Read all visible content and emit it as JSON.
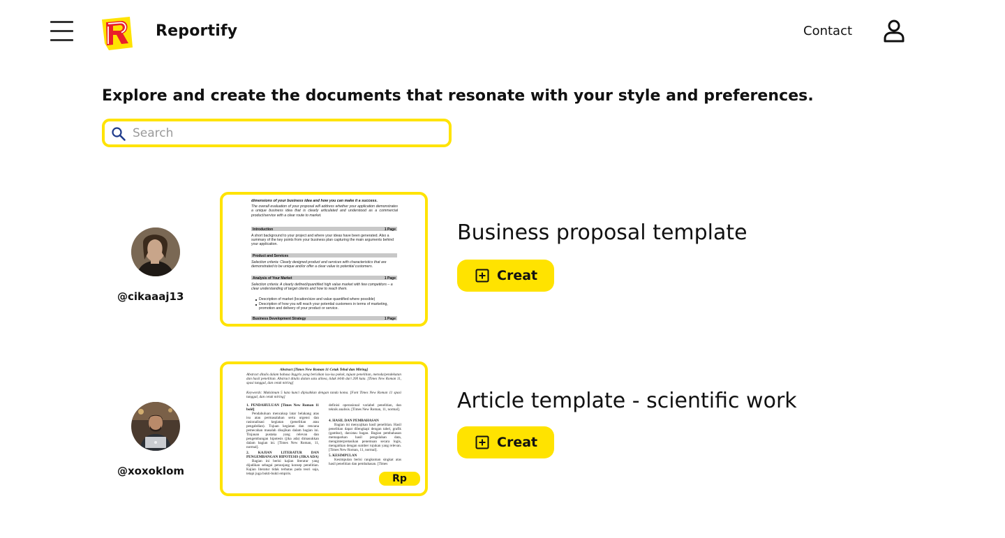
{
  "header": {
    "brand": "Reportify",
    "contact_label": "Contact",
    "menu_icon": "hamburger-menu-icon",
    "user_icon": "user-icon",
    "logo_icon": "reportify-logo-icon"
  },
  "main": {
    "headline": "Explore and create the documents that resonate with your style and preferences.",
    "search": {
      "placeholder": "Search",
      "value": ""
    }
  },
  "documents": [
    {
      "author": "@cikaaaj13",
      "title": "Business proposal template",
      "create_label": "Creat",
      "preview": {
        "lead": "dimensions of your business idea and how you can make it a success.",
        "intro": "The overall evaluation of your proposal will address whether your application demonstrates a unique business idea that is clearly articulated and understood as a commercial product/service with a clear route to market.",
        "sections": [
          {
            "heading": "Introduction",
            "pages": "1 Page",
            "text": "A short background to your project and where your ideas have been generated. Also a summary of the key points from your business plan capturing the main arguments behind your application."
          },
          {
            "heading": "Product and Services",
            "pages": "",
            "text": "Selection criteria: Clearly designed product and services with characteristics that are demonstrated to be unique and/or offer a clear value to potential customers."
          },
          {
            "heading": "Analysis of Your Market",
            "pages": "1 Page",
            "text": "Selection criteria: A clearly defined/quantified high value market with few competitors – a clear understanding of target clients and how to reach them."
          }
        ],
        "bullets": [
          "Description of market (location/size and value quantified where possible)",
          "Description of how you will reach your potential customers in terms of marketing, promotion and delivery of your product or service."
        ],
        "last_heading": "Business Development Strategy",
        "last_pages": "1 Page"
      }
    },
    {
      "author": "@xoxoklom",
      "title": "Article template - scientific work",
      "create_label": "Creat",
      "price_badge": "Rp",
      "preview": {
        "heading": "Abstract [Times New Roman 11 Cetak Tebal dan Miring]",
        "abstract": "Abstract ditulis dalam bahasa Inggris yang berisikan isu-isu pokok, tujuan penelitian, metoda/pendekatan dan hasil penelitian. Abstract ditulis dalam satu alinea, tidak lebih dari 200 kata. [Times New Roman 11, spasi tunggal, dan cetak miring]",
        "keywords": "Keywords: Maksimum 5 kata kunci dipisahkan dengan tanda koma. [Font Times New Roman 11 spasi tunggal, dan cetak miring]",
        "left_col": [
          "1. PENDAHULUAN [Times New Roman 11 bold]",
          "Pendahuluan mencakup latar belakang atas isu atau permasalahan serta urgensi dan rasionalisasi kegiatan (penelitian atau pengabdian). Tujuan kegiatan dan rencana pemecahan masalah disajikan dalam bagian ini. Tinjauan pustaka yang relevan dan pengembangan hipotesis (jika ada) dimasukkan dalam bagian ini. [Times New Roman, 11, normal].",
          "2. KAJIAN LITERATUR DAN PENGEMBANGAN HIPOTESIS (JIKA ADA)",
          "Bagian ini berisi kajian literatur yang dijadikan sebagai penunjang konsep penelitian. Kajian literatur tidak terbatas pada teori saja, tetapi juga bukti-bukti empiris."
        ],
        "right_col": [
          "definisi operasional variabel penelitian, dan teknik analisis. [Times New Roman, 11, normal].",
          "4. HASIL DAN PEMBAHASAN",
          "Bagian ini menyajikan hasil penelitian. Hasil penelitian dapat dilengkapi dengan tabel, grafik (gambar), dan/atau bagan. Bagian pembahasan memaparkan hasil pengolahan data, menginterpretasikan penemuan secara logis, mengaitkan dengan sumber rujukan yang relevan. [Times New Roman, 11, normal].",
          "5. KESIMPULAN",
          "Kesimpulan berisi rangkuman singkat atas hasil penelitian dan pembahasan. [Times"
        ]
      }
    }
  ],
  "colors": {
    "accent": "#FFE300",
    "logo_red": "#E8202A",
    "text": "#111111",
    "search_icon": "#1F3B8C"
  }
}
